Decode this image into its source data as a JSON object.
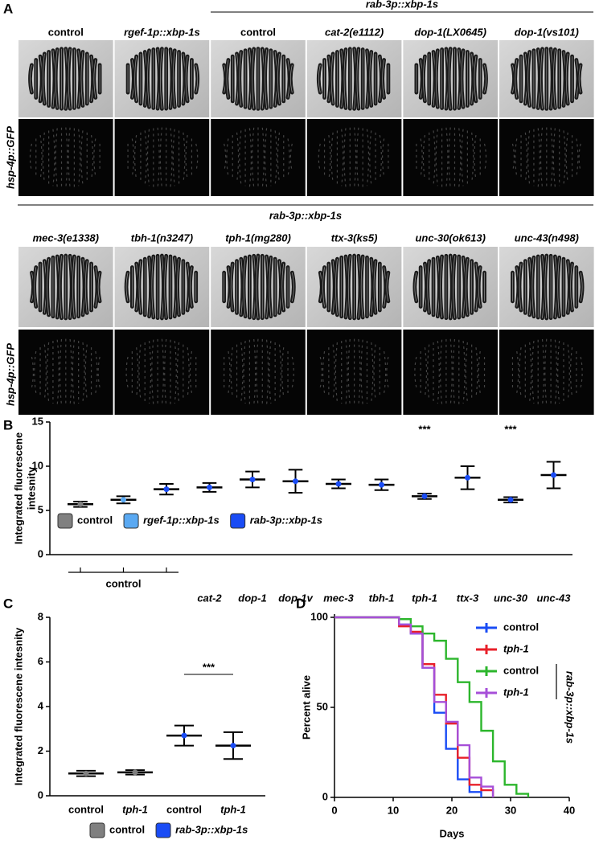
{
  "panel_labels": [
    "A",
    "B",
    "C",
    "D"
  ],
  "panel_a": {
    "group_label_top": "rab-3p::xbp-1s",
    "columns_top": [
      "control",
      "rgef-1p::xbp-1s",
      "control",
      "cat-2(e1112)",
      "dop-1(LX0645)",
      "dop-1(vs101)"
    ],
    "row_label_top": "hsp-4p::GFP",
    "group_label_bottom": "rab-3p::xbp-1s",
    "columns_bottom": [
      "mec-3(e1338)",
      "tbh-1(n3247)",
      "tph-1(mg280)",
      "ttx-3(ks5)",
      "unc-30(ok613)",
      "unc-43(n498)"
    ],
    "row_label_bottom": "hsp-4p::GFP"
  },
  "chart_data": [
    {
      "type": "mean_sd",
      "ylabel": [
        "Integrated fluorescene",
        "intesnity"
      ],
      "categories": [
        null,
        null,
        null,
        "cat-2",
        "dop-1",
        "dop-1v",
        "mec-3",
        "tbh-1",
        "tph-1",
        "ttx-3",
        "unc-30",
        "unc-43"
      ],
      "group_label": "control",
      "values": [
        5.7,
        6.2,
        7.4,
        7.6,
        8.5,
        8.3,
        8.0,
        7.9,
        6.6,
        8.7,
        6.2,
        9.0
      ],
      "errors": [
        0.3,
        0.4,
        0.6,
        0.5,
        0.9,
        1.3,
        0.5,
        0.6,
        0.3,
        1.3,
        0.3,
        1.5
      ],
      "colors": [
        "#808080",
        "#5aa9f2",
        "#1a4cf5",
        "#1a4cf5",
        "#1a4cf5",
        "#1a4cf5",
        "#1a4cf5",
        "#1a4cf5",
        "#1a4cf5",
        "#1a4cf5",
        "#1a4cf5",
        "#1a4cf5"
      ],
      "legend": [
        {
          "name": "control",
          "color": "#808080"
        },
        {
          "name": "rgef-1p::xbp-1s",
          "color": "#5aa9f2"
        },
        {
          "name": "rab-3p::xbp-1s",
          "color": "#1a4cf5"
        }
      ],
      "annotations": [
        {
          "text": "***",
          "at": "tph-1"
        },
        {
          "text": "***",
          "at": "unc-30"
        }
      ],
      "ylim": [
        0,
        15
      ],
      "yticks": [
        0,
        5,
        10,
        15
      ]
    },
    {
      "type": "mean_sd",
      "ylabel": [
        "Integrated fluorescene intesnity"
      ],
      "categories": [
        "control",
        "tph-1",
        "control",
        "tph-1"
      ],
      "values": [
        1.0,
        1.05,
        2.7,
        2.25
      ],
      "errors": [
        0.12,
        0.1,
        0.45,
        0.6
      ],
      "colors": [
        "#808080",
        "#808080",
        "#1a4cf5",
        "#1a4cf5"
      ],
      "legend": [
        {
          "name": "control",
          "color": "#808080"
        },
        {
          "name": "rab-3p::xbp-1s",
          "color": "#1a4cf5"
        }
      ],
      "annotations": [
        {
          "text": "***",
          "span": [
            2,
            3
          ]
        }
      ],
      "ylim": [
        0,
        8
      ],
      "yticks": [
        0,
        2,
        4,
        6,
        8
      ]
    },
    {
      "type": "step",
      "xlabel": "Days",
      "ylabel": "Percent alive",
      "x": [
        0,
        11,
        13,
        15,
        17,
        19,
        21,
        23,
        25,
        27,
        29,
        31,
        33
      ],
      "series": [
        {
          "name": "control",
          "color": "#1a4cf5",
          "values": [
            100,
            96,
            91,
            72,
            47,
            27,
            10,
            3,
            0,
            null,
            null,
            null,
            null
          ]
        },
        {
          "name": "tph-1",
          "color": "#e8202a",
          "values": [
            100,
            95,
            92,
            74,
            57,
            41,
            22,
            7,
            4,
            0,
            null,
            null,
            null
          ]
        },
        {
          "name": "control",
          "color": "#2cb62c",
          "values": [
            100,
            99,
            95,
            91,
            87,
            77,
            64,
            53,
            37,
            20,
            7,
            2,
            0
          ]
        },
        {
          "name": "tph-1",
          "color": "#a64fd8",
          "values": [
            100,
            96,
            91,
            72,
            53,
            42,
            29,
            11,
            6,
            0,
            null,
            null,
            null
          ]
        }
      ],
      "bracket_label": "rab-3p::xbp-1s",
      "xlim": [
        0,
        40
      ],
      "xticks": [
        0,
        10,
        20,
        30,
        40
      ],
      "ylim": [
        0,
        100
      ],
      "yticks": [
        0,
        50,
        100
      ]
    }
  ]
}
